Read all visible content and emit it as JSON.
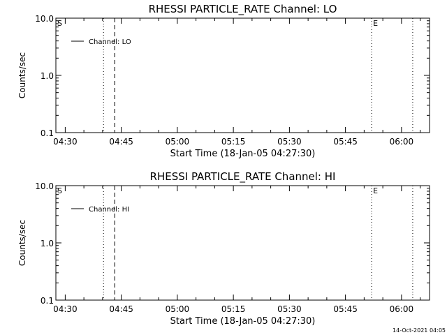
{
  "chart_data": [
    {
      "type": "line",
      "title": "RHESSI PARTICLE_RATE Channel: LO",
      "xlabel": "Start Time (18-Jan-05 04:27:30)",
      "ylabel": "Counts/sec",
      "xlim": [
        "04:27:30",
        "06:07:30"
      ],
      "ylim": [
        0.1,
        10.0
      ],
      "yscale": "log",
      "x_ticks": [
        "04:30",
        "04:45",
        "05:00",
        "05:15",
        "05:30",
        "05:45",
        "06:00"
      ],
      "y_ticks": [
        "0.1",
        "1.0",
        "10.0"
      ],
      "legend": {
        "position": "top-left",
        "entries": [
          {
            "label": "Channel: LO"
          }
        ]
      },
      "series": [
        {
          "values": []
        }
      ],
      "markers": [
        {
          "label": "S",
          "x": "04:27:30",
          "style": "none"
        },
        {
          "label": "",
          "x": "04:40:15",
          "style": "dotted"
        },
        {
          "label": "",
          "x": "04:43:15",
          "style": "dashed"
        },
        {
          "label": "E",
          "x": "05:52:00",
          "style": "dotted"
        },
        {
          "label": "",
          "x": "06:03:00",
          "style": "dotted"
        }
      ]
    },
    {
      "type": "line",
      "title": "RHESSI PARTICLE_RATE Channel: HI",
      "xlabel": "Start Time (18-Jan-05 04:27:30)",
      "ylabel": "Counts/sec",
      "xlim": [
        "04:27:30",
        "06:07:30"
      ],
      "ylim": [
        0.1,
        10.0
      ],
      "yscale": "log",
      "x_ticks": [
        "04:30",
        "04:45",
        "05:00",
        "05:15",
        "05:30",
        "05:45",
        "06:00"
      ],
      "y_ticks": [
        "0.1",
        "1.0",
        "10.0"
      ],
      "legend": {
        "position": "top-left",
        "entries": [
          {
            "label": "Channel: HI"
          }
        ]
      },
      "series": [
        {
          "values": []
        }
      ],
      "markers": [
        {
          "label": "S",
          "x": "04:27:30",
          "style": "none"
        },
        {
          "label": "",
          "x": "04:40:15",
          "style": "dotted"
        },
        {
          "label": "",
          "x": "04:43:15",
          "style": "dashed"
        },
        {
          "label": "E",
          "x": "05:52:00",
          "style": "dotted"
        },
        {
          "label": "",
          "x": "06:03:00",
          "style": "dotted"
        }
      ]
    }
  ],
  "footer": {
    "timestamp": "14-Oct-2021 04:05"
  }
}
